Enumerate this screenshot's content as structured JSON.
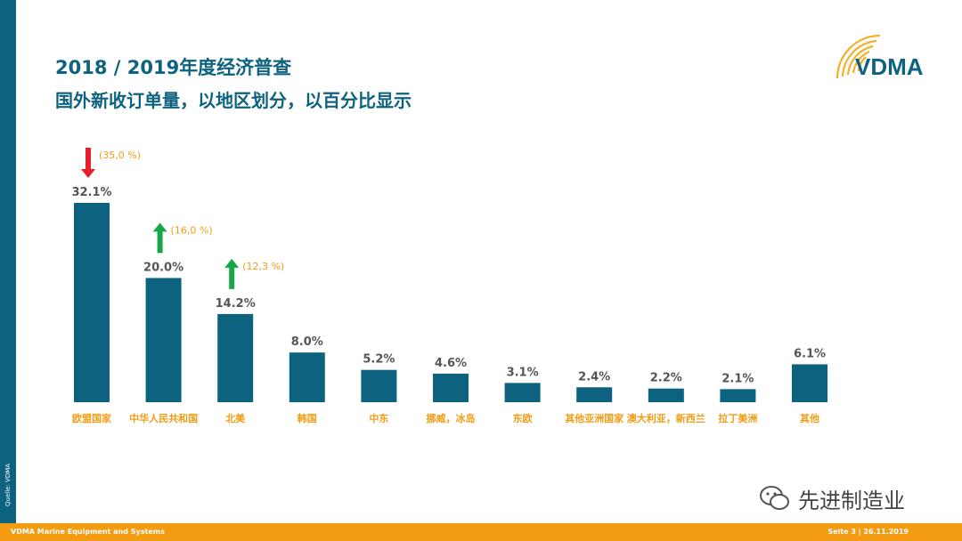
{
  "header": {
    "title": "2018 / 2019年度经济普查",
    "subtitle": "国外新收订单量，以地区划分，以百分比显示"
  },
  "logo": {
    "text": "VDMA",
    "icon": "vdma-logo-icon"
  },
  "footer": {
    "left": "VDMA   Marine Equipment and Systems",
    "right": "Seite 3 | 26.11.2019"
  },
  "source_note": "Quelle: VDMA",
  "watermark": {
    "text": "先进制造业",
    "icon": "wechat-icon"
  },
  "colors": {
    "bar": "#0d6280",
    "category_label": "#f39c12",
    "annotation_text": "#f39c12",
    "arrow_down": "#e3202b",
    "arrow_up": "#19a64a",
    "footer": "#f39c12",
    "side_bar": "#0d6280"
  },
  "chart_data": {
    "type": "bar",
    "categories": [
      "欧盟国家",
      "中华人民共和国",
      "北美",
      "韩国",
      "中东",
      "挪威，冰岛",
      "东欧",
      "其他亚洲国家",
      "澳大利亚，新西兰",
      "拉丁美洲",
      "其他"
    ],
    "values": [
      32.1,
      20.0,
      14.2,
      8.0,
      5.2,
      4.6,
      3.1,
      2.4,
      2.2,
      2.1,
      6.1
    ],
    "value_labels": [
      "32.1%",
      "20.0%",
      "14.2%",
      "8.0%",
      "5.2%",
      "4.6%",
      "3.1%",
      "2.4%",
      "2.2%",
      "2.1%",
      "6.1%"
    ],
    "annotations": [
      {
        "category": "欧盟国家",
        "direction": "down",
        "text": "(35,0 %)"
      },
      {
        "category": "中华人民共和国",
        "direction": "up",
        "text": "(16,0 %)"
      },
      {
        "category": "北美",
        "direction": "up",
        "text": "(12,3 %)"
      }
    ],
    "ylim": [
      0,
      32.1
    ],
    "grid": false,
    "title": "2018 / 2019年度经济普查",
    "xlabel": "",
    "ylabel": ""
  }
}
